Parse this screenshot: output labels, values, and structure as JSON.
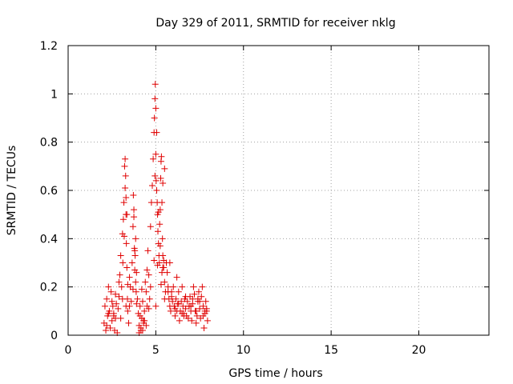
{
  "chart_data": {
    "type": "scatter",
    "title": "Day 329 of 2011, SRMTID for receiver nklg",
    "xlabel": "GPS time / hours",
    "ylabel": "SRMTID / TECUs",
    "xlim": [
      0,
      24
    ],
    "ylim": [
      0,
      1.2
    ],
    "xticks": [
      0,
      5,
      10,
      15,
      20
    ],
    "yticks": [
      0,
      0.2,
      0.4,
      0.6,
      0.8,
      1,
      1.2
    ],
    "xtick_labels": [
      "0",
      "5",
      "10",
      "15",
      "20"
    ],
    "ytick_labels": [
      "0",
      "0.2",
      "0.4",
      "0.6",
      "0.8",
      "1",
      "1.2"
    ],
    "grid": true,
    "marker": "+",
    "color": "#e00000",
    "series": [
      {
        "name": "SRMTID",
        "x": [
          2.05,
          2.1,
          2.15,
          2.2,
          2.25,
          2.3,
          2.35,
          2.4,
          2.45,
          2.5,
          2.55,
          2.6,
          2.65,
          2.7,
          2.75,
          2.8,
          2.85,
          2.9,
          2.95,
          3.0,
          3.05,
          3.1,
          3.12,
          3.15,
          3.18,
          3.2,
          3.22,
          3.25,
          3.28,
          3.3,
          3.3,
          3.32,
          3.35,
          3.38,
          3.4,
          3.45,
          3.5,
          3.55,
          3.6,
          3.65,
          3.7,
          3.72,
          3.75,
          3.78,
          3.8,
          3.82,
          3.85,
          3.88,
          3.9,
          3.95,
          4.0,
          4.05,
          4.1,
          4.15,
          4.2,
          4.25,
          4.3,
          4.35,
          4.4,
          4.45,
          4.5,
          4.55,
          4.6,
          4.65,
          4.7,
          4.75,
          4.8,
          4.85,
          4.9,
          4.92,
          4.95,
          4.97,
          5.0,
          5.0,
          5.02,
          5.05,
          5.08,
          5.1,
          5.12,
          5.15,
          5.18,
          5.2,
          5.22,
          5.25,
          5.28,
          5.3,
          5.32,
          5.35,
          5.38,
          5.4,
          5.45,
          5.5,
          5.55,
          5.6,
          5.65,
          5.7,
          5.75,
          5.8,
          5.85,
          5.9,
          5.95,
          6.0,
          6.05,
          6.1,
          6.15,
          6.2,
          6.25,
          6.3,
          6.35,
          6.4,
          6.45,
          6.5,
          6.55,
          6.6,
          6.65,
          6.7,
          6.75,
          6.8,
          6.85,
          6.9,
          6.95,
          7.0,
          7.05,
          7.1,
          7.15,
          7.2,
          7.25,
          7.3,
          7.35,
          7.4,
          7.45,
          7.5,
          7.55,
          7.6,
          7.65,
          7.7,
          7.75,
          7.8,
          7.85,
          7.9,
          7.95,
          2.3,
          2.5,
          2.7,
          2.9,
          3.1,
          3.3,
          3.5,
          3.7,
          3.9,
          4.1,
          4.3,
          4.5,
          4.7,
          4.9,
          5.1,
          5.3,
          5.5,
          5.7,
          5.9,
          6.1,
          6.3,
          6.5,
          6.7,
          6.9,
          7.1,
          7.3,
          7.5,
          7.7,
          7.9,
          2.2,
          2.6,
          3.0,
          3.4,
          3.8,
          4.2,
          4.6,
          5.0,
          5.4,
          5.8,
          6.2,
          6.6,
          7.0,
          7.4,
          7.8,
          4.05,
          4.15,
          4.25,
          4.35,
          4.45,
          5.25,
          5.35,
          5.45,
          3.25,
          3.35,
          3.75,
          3.85,
          4.95,
          5.05,
          5.15,
          5.4,
          5.5
        ],
        "y": [
          0.05,
          0.12,
          0.02,
          0.15,
          0.08,
          0.2,
          0.1,
          0.03,
          0.18,
          0.06,
          0.12,
          0.09,
          0.02,
          0.07,
          0.13,
          0.01,
          0.11,
          0.16,
          0.25,
          0.33,
          0.2,
          0.42,
          0.3,
          0.48,
          0.55,
          0.41,
          0.7,
          0.73,
          0.66,
          0.57,
          0.5,
          0.38,
          0.28,
          0.15,
          0.1,
          0.05,
          0.12,
          0.2,
          0.14,
          0.3,
          0.45,
          0.58,
          0.49,
          0.36,
          0.27,
          0.33,
          0.22,
          0.18,
          0.26,
          0.15,
          0.09,
          0.04,
          0.12,
          0.02,
          0.07,
          0.14,
          0.05,
          0.1,
          0.22,
          0.18,
          0.27,
          0.35,
          0.25,
          0.15,
          0.45,
          0.55,
          0.62,
          0.73,
          0.84,
          0.9,
          0.98,
          1.04,
          0.94,
          0.75,
          0.64,
          0.6,
          0.55,
          0.5,
          0.43,
          0.38,
          0.33,
          0.3,
          0.46,
          0.52,
          0.65,
          0.72,
          0.74,
          0.55,
          0.4,
          0.33,
          0.28,
          0.22,
          0.18,
          0.3,
          0.26,
          0.2,
          0.15,
          0.12,
          0.1,
          0.18,
          0.14,
          0.2,
          0.12,
          0.08,
          0.15,
          0.1,
          0.13,
          0.18,
          0.06,
          0.1,
          0.14,
          0.2,
          0.12,
          0.09,
          0.15,
          0.11,
          0.08,
          0.14,
          0.07,
          0.12,
          0.16,
          0.1,
          0.06,
          0.13,
          0.2,
          0.17,
          0.1,
          0.05,
          0.08,
          0.14,
          0.18,
          0.11,
          0.07,
          0.16,
          0.2,
          0.12,
          0.03,
          0.09,
          0.14,
          0.1,
          0.06,
          0.09,
          0.14,
          0.17,
          0.22,
          0.15,
          0.12,
          0.24,
          0.19,
          0.13,
          0.08,
          0.06,
          0.12,
          0.2,
          0.31,
          0.29,
          0.21,
          0.15,
          0.18,
          0.16,
          0.11,
          0.13,
          0.09,
          0.16,
          0.12,
          0.15,
          0.1,
          0.14,
          0.08,
          0.11,
          0.04,
          0.08,
          0.07,
          0.21,
          0.35,
          0.19,
          0.11,
          0.12,
          0.28,
          0.3,
          0.24,
          0.08,
          0.12,
          0.15,
          0.1,
          0.01,
          0.03,
          0.02,
          0.06,
          0.04,
          0.37,
          0.26,
          0.31,
          0.61,
          0.5,
          0.52,
          0.4,
          0.66,
          0.84,
          0.51,
          0.63,
          0.69
        ]
      }
    ]
  }
}
